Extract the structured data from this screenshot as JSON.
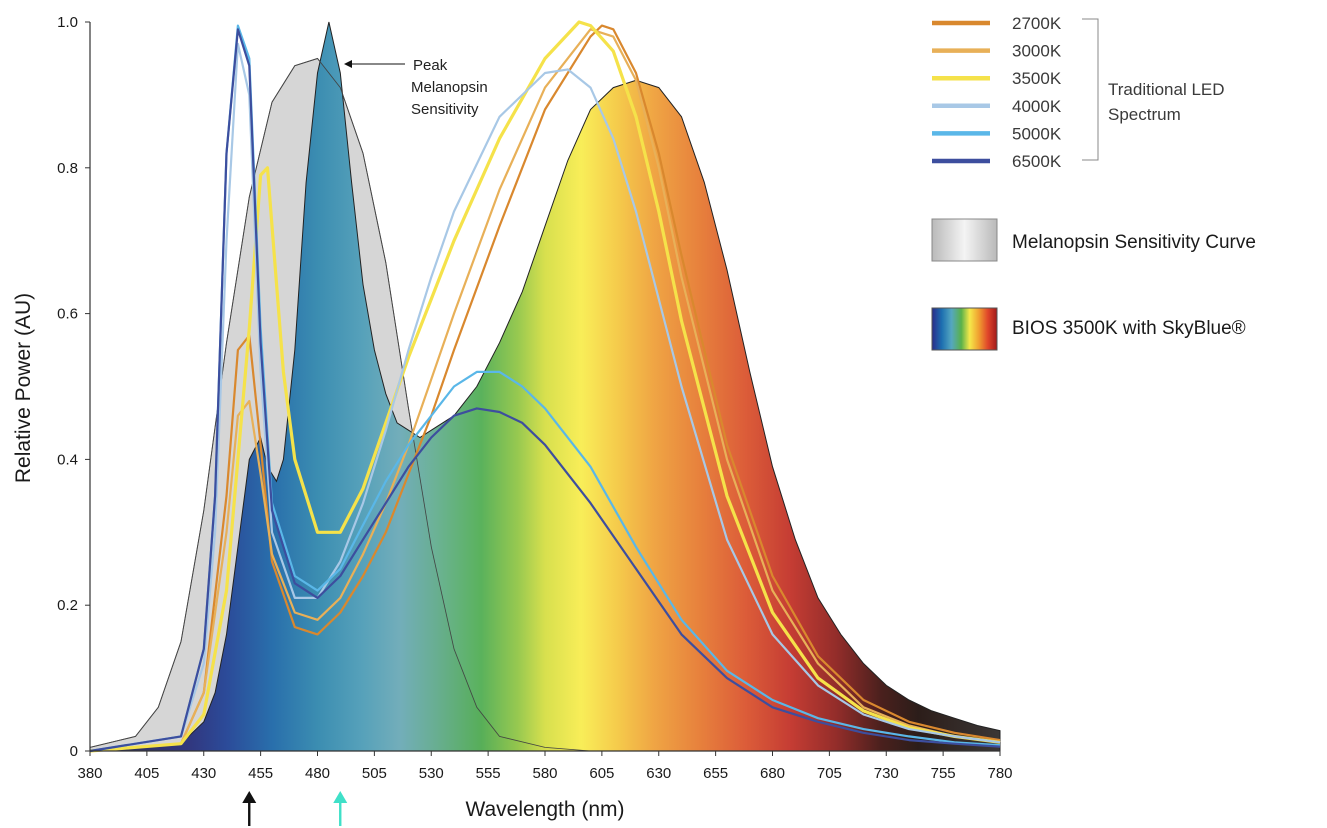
{
  "chart_data": {
    "type": "line",
    "xlabel": "Wavelength (nm)",
    "ylabel": "Relative Power (AU)",
    "xlim": [
      380,
      780
    ],
    "ylim": [
      0,
      1.0
    ],
    "x_ticks": [
      "380",
      "405",
      "430",
      "455",
      "480",
      "505",
      "530",
      "555",
      "580",
      "605",
      "630",
      "655",
      "680",
      "705",
      "730",
      "755",
      "780"
    ],
    "y_ticks": [
      {
        "value": 0,
        "label": "0"
      },
      {
        "value": 0.2,
        "label": "0.2"
      },
      {
        "value": 0.4,
        "label": "0.4"
      },
      {
        "value": 0.6,
        "label": "0.6"
      },
      {
        "value": 0.8,
        "label": "0.8"
      },
      {
        "value": 1.0,
        "label": "1.0"
      }
    ],
    "annotation": {
      "lines": [
        "Peak",
        "Melanopsin",
        "Sensitivity"
      ],
      "x": 490,
      "y": 0.945
    },
    "markers": [
      {
        "x": 450,
        "color": "#111111"
      },
      {
        "x": 490,
        "color": "#3fe0c8"
      }
    ],
    "legend": {
      "position": "right",
      "group_label": [
        "Traditional LED",
        "Spectrum"
      ],
      "lines": [
        {
          "name": "2700K",
          "color": "#d9882e"
        },
        {
          "name": "3000K",
          "color": "#e8b058"
        },
        {
          "name": "3500K",
          "color": "#f5e24a"
        },
        {
          "name": "4000K",
          "color": "#a8c8e6"
        },
        {
          "name": "5000K",
          "color": "#5ab7e8"
        },
        {
          "name": "6500K",
          "color": "#3d4e9e"
        }
      ],
      "fills": [
        {
          "name": "Melanopsin Sensitivity Curve",
          "kind": "gray"
        },
        {
          "name": "BIOS 3500K with SkyBlue®",
          "kind": "rainbow"
        }
      ]
    },
    "melanopsin": {
      "x": [
        380,
        400,
        410,
        420,
        430,
        440,
        450,
        460,
        470,
        480,
        490,
        500,
        510,
        520,
        530,
        540,
        550,
        560,
        580,
        600
      ],
      "y": [
        0.005,
        0.02,
        0.06,
        0.15,
        0.33,
        0.56,
        0.76,
        0.89,
        0.94,
        0.95,
        0.91,
        0.82,
        0.67,
        0.47,
        0.28,
        0.14,
        0.06,
        0.02,
        0.005,
        0.0
      ]
    },
    "bios": {
      "x": [
        380,
        420,
        430,
        435,
        440,
        445,
        450,
        455,
        458,
        462,
        465,
        470,
        475,
        480,
        485,
        490,
        495,
        500,
        505,
        510,
        515,
        520,
        525,
        530,
        540,
        550,
        560,
        570,
        580,
        590,
        600,
        610,
        620,
        630,
        640,
        650,
        660,
        670,
        680,
        690,
        700,
        710,
        720,
        730,
        740,
        750,
        760,
        770,
        780
      ],
      "y": [
        0.0,
        0.01,
        0.04,
        0.08,
        0.16,
        0.28,
        0.4,
        0.43,
        0.39,
        0.37,
        0.4,
        0.55,
        0.78,
        0.93,
        1.0,
        0.93,
        0.78,
        0.64,
        0.55,
        0.49,
        0.45,
        0.44,
        0.43,
        0.44,
        0.46,
        0.5,
        0.56,
        0.63,
        0.72,
        0.81,
        0.88,
        0.91,
        0.92,
        0.91,
        0.87,
        0.78,
        0.66,
        0.52,
        0.39,
        0.29,
        0.21,
        0.16,
        0.12,
        0.09,
        0.07,
        0.055,
        0.045,
        0.035,
        0.028
      ]
    },
    "series": [
      {
        "name": "2700K",
        "x": [
          380,
          420,
          430,
          440,
          445,
          450,
          455,
          460,
          470,
          480,
          490,
          500,
          510,
          520,
          530,
          540,
          560,
          580,
          600,
          605,
          610,
          620,
          630,
          640,
          660,
          680,
          700,
          720,
          740,
          760,
          780
        ],
        "y": [
          0.0,
          0.01,
          0.08,
          0.35,
          0.55,
          0.57,
          0.42,
          0.26,
          0.17,
          0.16,
          0.19,
          0.24,
          0.3,
          0.38,
          0.46,
          0.55,
          0.72,
          0.88,
          0.98,
          0.995,
          0.99,
          0.93,
          0.82,
          0.68,
          0.42,
          0.24,
          0.13,
          0.07,
          0.04,
          0.025,
          0.015
        ]
      },
      {
        "name": "3000K",
        "x": [
          380,
          420,
          430,
          440,
          445,
          450,
          455,
          460,
          470,
          480,
          490,
          500,
          510,
          520,
          530,
          540,
          560,
          580,
          600,
          610,
          620,
          630,
          640,
          660,
          680,
          700,
          720,
          740,
          760,
          780
        ],
        "y": [
          0.0,
          0.01,
          0.08,
          0.3,
          0.46,
          0.48,
          0.38,
          0.27,
          0.19,
          0.18,
          0.21,
          0.27,
          0.34,
          0.42,
          0.51,
          0.6,
          0.77,
          0.91,
          0.99,
          0.98,
          0.92,
          0.8,
          0.65,
          0.4,
          0.22,
          0.12,
          0.06,
          0.035,
          0.02,
          0.012
        ]
      },
      {
        "name": "3500K",
        "x": [
          380,
          420,
          430,
          440,
          445,
          450,
          455,
          458,
          460,
          465,
          470,
          480,
          490,
          500,
          510,
          520,
          530,
          540,
          560,
          580,
          595,
          600,
          610,
          620,
          630,
          640,
          660,
          680,
          700,
          720,
          740,
          760,
          780
        ],
        "y": [
          0.0,
          0.01,
          0.05,
          0.22,
          0.4,
          0.58,
          0.79,
          0.8,
          0.72,
          0.52,
          0.4,
          0.3,
          0.3,
          0.36,
          0.45,
          0.54,
          0.62,
          0.7,
          0.84,
          0.95,
          1.0,
          0.995,
          0.96,
          0.87,
          0.74,
          0.59,
          0.35,
          0.19,
          0.1,
          0.055,
          0.032,
          0.02,
          0.012
        ]
      },
      {
        "name": "4000K",
        "x": [
          380,
          420,
          430,
          435,
          440,
          445,
          450,
          455,
          460,
          470,
          480,
          490,
          500,
          510,
          520,
          530,
          540,
          560,
          580,
          590,
          600,
          610,
          620,
          640,
          660,
          680,
          700,
          720,
          740,
          760,
          780
        ],
        "y": [
          0.0,
          0.02,
          0.12,
          0.3,
          0.7,
          0.97,
          0.9,
          0.52,
          0.3,
          0.21,
          0.21,
          0.26,
          0.34,
          0.44,
          0.55,
          0.65,
          0.74,
          0.87,
          0.93,
          0.935,
          0.91,
          0.84,
          0.74,
          0.5,
          0.29,
          0.16,
          0.09,
          0.05,
          0.03,
          0.02,
          0.012
        ]
      },
      {
        "name": "5000K",
        "x": [
          380,
          420,
          430,
          435,
          440,
          445,
          450,
          455,
          460,
          470,
          480,
          490,
          500,
          510,
          520,
          530,
          540,
          550,
          560,
          570,
          580,
          600,
          620,
          640,
          660,
          680,
          700,
          720,
          740,
          760,
          780
        ],
        "y": [
          0.0,
          0.02,
          0.14,
          0.35,
          0.82,
          0.995,
          0.95,
          0.58,
          0.34,
          0.24,
          0.22,
          0.25,
          0.31,
          0.37,
          0.42,
          0.46,
          0.5,
          0.52,
          0.52,
          0.5,
          0.47,
          0.39,
          0.28,
          0.18,
          0.11,
          0.07,
          0.045,
          0.03,
          0.02,
          0.012,
          0.008
        ]
      },
      {
        "name": "6500K",
        "x": [
          380,
          420,
          430,
          435,
          440,
          445,
          450,
          455,
          460,
          470,
          480,
          490,
          500,
          510,
          520,
          530,
          540,
          550,
          560,
          570,
          580,
          600,
          620,
          640,
          660,
          680,
          700,
          720,
          740,
          760,
          780
        ],
        "y": [
          0.0,
          0.02,
          0.14,
          0.35,
          0.82,
          0.99,
          0.94,
          0.56,
          0.33,
          0.23,
          0.21,
          0.24,
          0.29,
          0.34,
          0.39,
          0.43,
          0.46,
          0.47,
          0.465,
          0.45,
          0.42,
          0.34,
          0.25,
          0.16,
          0.1,
          0.06,
          0.04,
          0.025,
          0.015,
          0.01,
          0.006
        ]
      }
    ]
  }
}
